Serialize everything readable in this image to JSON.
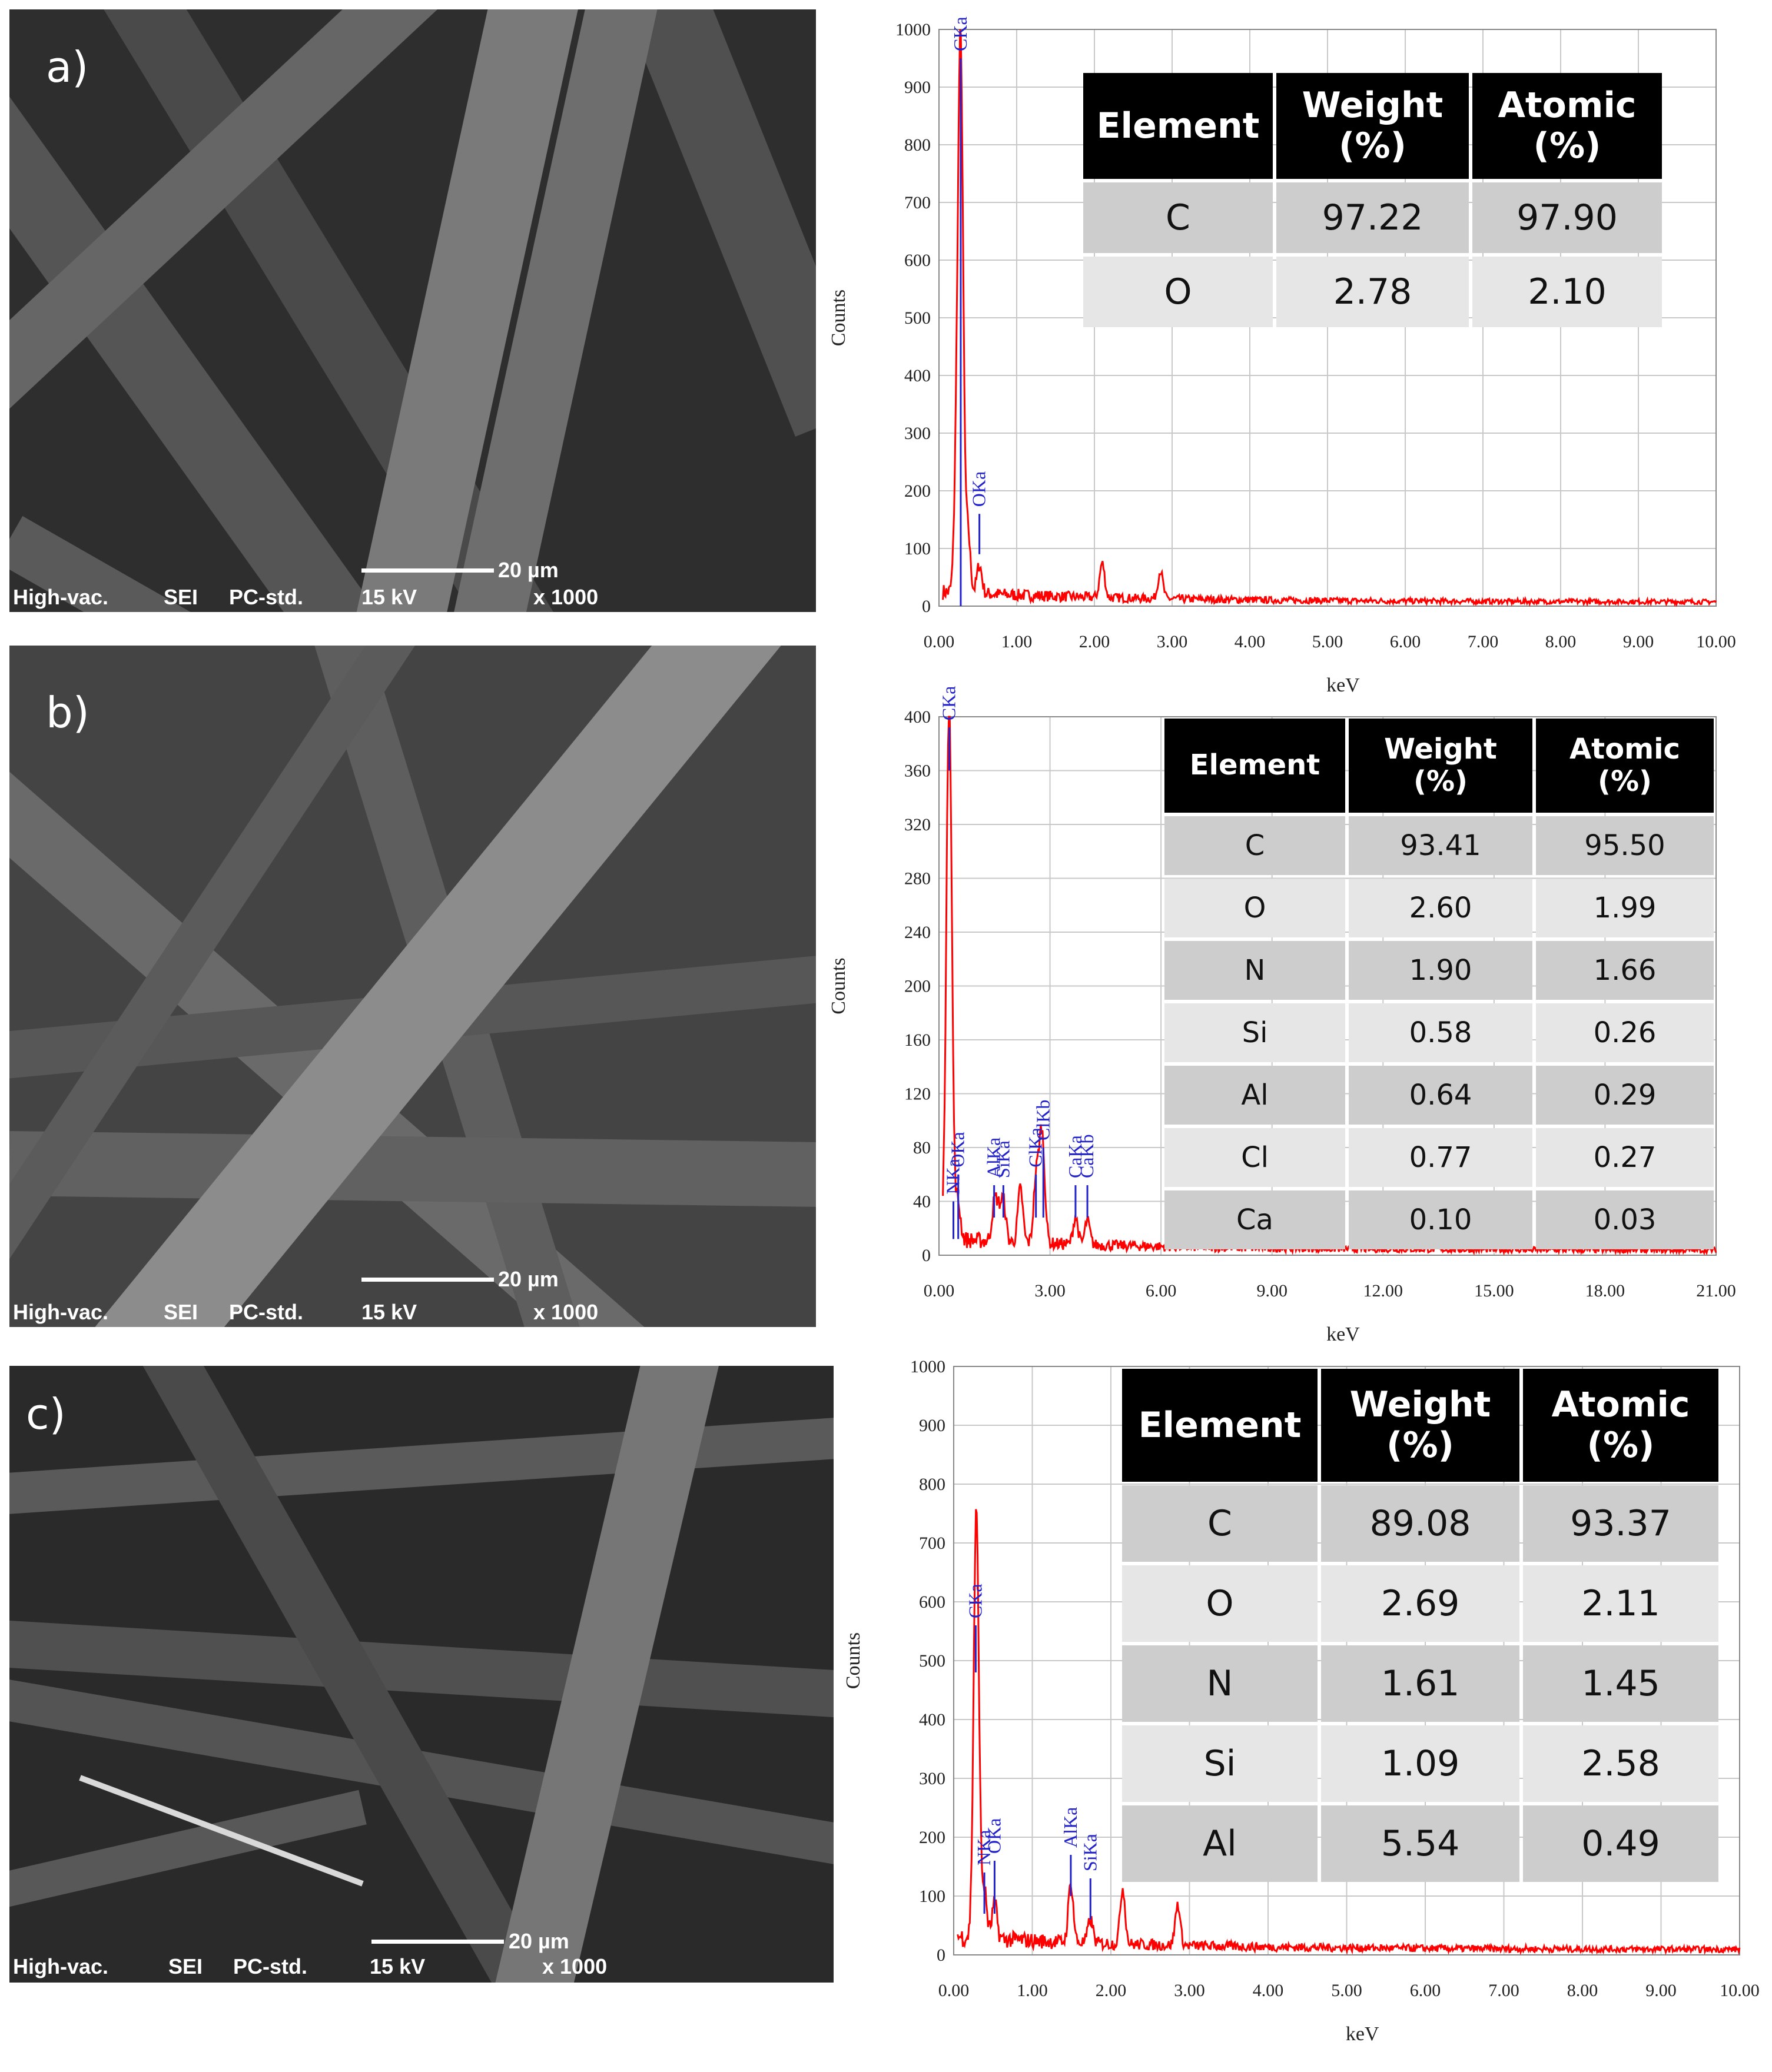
{
  "panels": [
    {
      "letter": "a)",
      "sem_info": [
        "High-vac.",
        "SEI",
        "PC-std.",
        "15 kV",
        "x 1000"
      ],
      "scale_label": "20 µm",
      "chart_data": {
        "type": "line",
        "ylabel": "Counts",
        "xlabel": "keV",
        "xlim": [
          0,
          10
        ],
        "ylim": [
          0,
          1000
        ],
        "xticks": [
          "0.00",
          "1.00",
          "2.00",
          "3.00",
          "4.00",
          "5.00",
          "6.00",
          "7.00",
          "8.00",
          "9.00",
          "10.00"
        ],
        "yticks": [
          "0",
          "100",
          "200",
          "300",
          "400",
          "500",
          "600",
          "700",
          "800",
          "900",
          "1000"
        ],
        "grid": true,
        "series_color": "#ff0000",
        "peaks": [
          {
            "label": "CKa",
            "x": 0.28,
            "y": 900,
            "marker_from": 0,
            "marker_to": 0.95
          },
          {
            "label": "OKa",
            "x": 0.52,
            "y": 50,
            "marker_from": 0.09,
            "marker_to": 0.16
          }
        ],
        "bumps": [
          {
            "x": 0.23,
            "y": 230
          },
          {
            "x": 0.37,
            "y": 110
          },
          {
            "x": 2.1,
            "y": 60
          },
          {
            "x": 2.85,
            "y": 48
          }
        ],
        "baseline": 8
      },
      "table": {
        "headers": [
          [
            "Element"
          ],
          [
            "Weight",
            "(%)"
          ],
          [
            "Atomic",
            "(%)"
          ]
        ],
        "rows": [
          [
            "C",
            "97.22",
            "97.90"
          ],
          [
            "O",
            "2.78",
            "2.10"
          ]
        ]
      }
    },
    {
      "letter": "b)",
      "sem_info": [
        "High-vac.",
        "SEI",
        "PC-std.",
        "15 kV",
        "x 1000"
      ],
      "scale_label": "20 µm",
      "chart_data": {
        "type": "line",
        "ylabel": "Counts",
        "xlabel": "keV",
        "xlim": [
          0,
          21
        ],
        "ylim": [
          0,
          400
        ],
        "xticks": [
          "0.00",
          "3.00",
          "6.00",
          "9.00",
          "12.00",
          "15.00",
          "18.00",
          "21.00"
        ],
        "yticks": [
          "0",
          "40",
          "80",
          "120",
          "160",
          "200",
          "240",
          "280",
          "320",
          "360",
          "400"
        ],
        "grid": true,
        "series_color": "#ff0000",
        "peaks": [
          {
            "label": "CKa",
            "x": 0.28,
            "y": 370,
            "marker_from": 0.9,
            "marker_to": 0.98
          },
          {
            "label": "NKa",
            "x": 0.39,
            "y": 20,
            "marker_from": 0.03,
            "marker_to": 0.1
          },
          {
            "label": "OKa",
            "x": 0.52,
            "y": 25,
            "marker_from": 0.03,
            "marker_to": 0.15
          },
          {
            "label": "AlKa",
            "x": 1.49,
            "y": 25,
            "marker_from": 0.07,
            "marker_to": 0.13
          },
          {
            "label": "SiKa",
            "x": 1.74,
            "y": 30,
            "marker_from": 0.07,
            "marker_to": 0.13
          },
          {
            "label": "ClKa",
            "x": 2.62,
            "y": 45,
            "marker_from": 0.07,
            "marker_to": 0.15
          },
          {
            "label": "ClKb",
            "x": 2.82,
            "y": 40,
            "marker_from": 0.07,
            "marker_to": 0.2
          },
          {
            "label": "CaKa",
            "x": 3.69,
            "y": 20,
            "marker_from": 0.07,
            "marker_to": 0.13
          },
          {
            "label": "CaKb",
            "x": 4.01,
            "y": 18,
            "marker_from": 0.07,
            "marker_to": 0.13
          }
        ],
        "bumps": [
          {
            "x": 0.2,
            "y": 60
          },
          {
            "x": 2.2,
            "y": 40
          },
          {
            "x": 2.75,
            "y": 55
          },
          {
            "x": 1.6,
            "y": 20
          }
        ],
        "baseline": 4
      },
      "table": {
        "headers": [
          [
            "Element"
          ],
          [
            "Weight",
            "(%)"
          ],
          [
            "Atomic",
            "(%)"
          ]
        ],
        "rows": [
          [
            "C",
            "93.41",
            "95.50"
          ],
          [
            "O",
            "2.60",
            "1.99"
          ],
          [
            "N",
            "1.90",
            "1.66"
          ],
          [
            "Si",
            "0.58",
            "0.26"
          ],
          [
            "Al",
            "0.64",
            "0.29"
          ],
          [
            "Cl",
            "0.77",
            "0.27"
          ],
          [
            "Ca",
            "0.10",
            "0.03"
          ]
        ]
      }
    },
    {
      "letter": "c)",
      "sem_info": [
        "High-vac.",
        "SEI",
        "PC-std.",
        "15 kV",
        "x 1000"
      ],
      "scale_label": "20 µm",
      "chart_data": {
        "type": "line",
        "ylabel": "Counts",
        "xlabel": "keV",
        "xlim": [
          0,
          10
        ],
        "ylim": [
          0,
          1000
        ],
        "xticks": [
          "0.00",
          "1.00",
          "2.00",
          "3.00",
          "4.00",
          "5.00",
          "6.00",
          "7.00",
          "8.00",
          "9.00",
          "10.00"
        ],
        "yticks": [
          "0",
          "100",
          "200",
          "300",
          "400",
          "500",
          "600",
          "700",
          "800",
          "900",
          "1000"
        ],
        "grid": true,
        "series_color": "#ff0000",
        "peaks": [
          {
            "label": "CKa",
            "x": 0.28,
            "y": 470,
            "marker_from": 0.48,
            "marker_to": 0.56
          },
          {
            "label": "NKa",
            "x": 0.39,
            "y": 80,
            "marker_from": 0.07,
            "marker_to": 0.14
          },
          {
            "label": "OKa",
            "x": 0.52,
            "y": 60,
            "marker_from": 0.07,
            "marker_to": 0.16
          },
          {
            "label": "AlKa",
            "x": 1.49,
            "y": 100,
            "marker_from": 0.1,
            "marker_to": 0.17
          },
          {
            "label": "SiKa",
            "x": 1.74,
            "y": 40,
            "marker_from": 0.06,
            "marker_to": 0.13
          }
        ],
        "bumps": [
          {
            "x": 0.3,
            "y": 290
          },
          {
            "x": 2.15,
            "y": 95
          },
          {
            "x": 2.85,
            "y": 70
          }
        ],
        "baseline": 10
      },
      "table": {
        "headers": [
          [
            "Element"
          ],
          [
            "Weight",
            "(%)"
          ],
          [
            "Atomic",
            "(%)"
          ]
        ],
        "rows": [
          [
            "C",
            "89.08",
            "93.37"
          ],
          [
            "O",
            "2.69",
            "2.11"
          ],
          [
            "N",
            "1.61",
            "1.45"
          ],
          [
            "Si",
            "1.09",
            "2.58"
          ],
          [
            "Al",
            "5.54",
            "0.49"
          ]
        ]
      }
    }
  ]
}
